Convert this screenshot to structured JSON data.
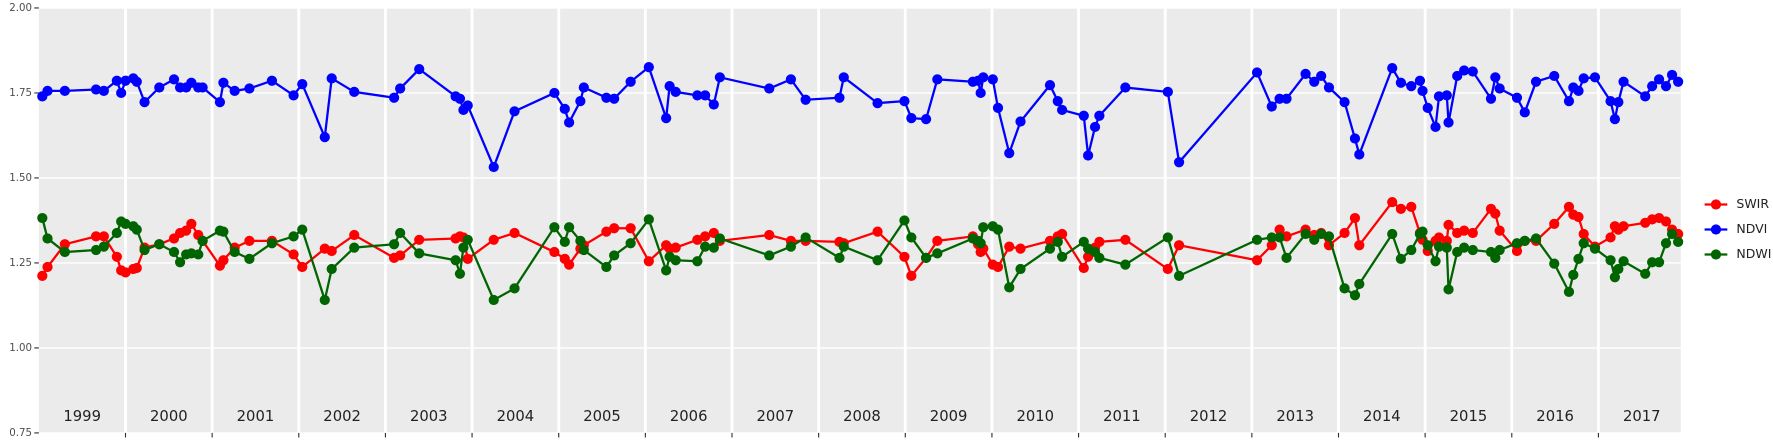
{
  "chart_data": {
    "type": "line",
    "x": [
      1999.04,
      1999.1,
      1999.3,
      1999.66,
      1999.75,
      1999.9,
      1999.95,
      2000.0,
      2000.09,
      2000.13,
      2000.22,
      2000.39,
      2000.56,
      2000.63,
      2000.7,
      2000.76,
      2000.84,
      2000.89,
      2001.09,
      2001.13,
      2001.26,
      2001.43,
      2001.69,
      2001.94,
      2002.04,
      2002.3,
      2002.38,
      2002.64,
      2003.1,
      2003.17,
      2003.39,
      2003.81,
      2003.86,
      2003.9,
      2003.95,
      2004.25,
      2004.49,
      2004.95,
      2005.07,
      2005.12,
      2005.25,
      2005.29,
      2005.55,
      2005.64,
      2005.83,
      2006.04,
      2006.24,
      2006.28,
      2006.35,
      2006.6,
      2006.69,
      2006.79,
      2006.86,
      2007.43,
      2007.68,
      2007.85,
      2008.24,
      2008.29,
      2008.68,
      2008.99,
      2009.07,
      2009.24,
      2009.37,
      2009.78,
      2009.84,
      2009.87,
      2009.9,
      2010.01,
      2010.07,
      2010.2,
      2010.33,
      2010.67,
      2010.76,
      2010.81,
      2011.06,
      2011.11,
      2011.19,
      2011.24,
      2011.54,
      2012.03,
      2012.16,
      2013.06,
      2013.23,
      2013.32,
      2013.4,
      2013.62,
      2013.72,
      2013.8,
      2013.89,
      2014.07,
      2014.19,
      2014.24,
      2014.62,
      2014.72,
      2014.84,
      2014.94,
      2014.97,
      2015.03,
      2015.12,
      2015.16,
      2015.25,
      2015.27,
      2015.37,
      2015.45,
      2015.55,
      2015.76,
      2015.81,
      2015.86,
      2016.06,
      2016.15,
      2016.28,
      2016.49,
      2016.66,
      2016.71,
      2016.77,
      2016.83,
      2016.96,
      2017.14,
      2017.19,
      2017.23,
      2017.29,
      2017.54,
      2017.62,
      2017.7,
      2017.78,
      2017.85,
      2017.92
    ],
    "series": [
      {
        "name": "SWIR",
        "color": "#ff0000",
        "values": [
          1.212,
          1.238,
          1.305,
          1.328,
          1.328,
          1.268,
          1.228,
          1.222,
          1.232,
          1.235,
          1.295,
          1.305,
          1.322,
          1.338,
          1.345,
          1.365,
          1.332,
          1.315,
          1.242,
          1.258,
          1.295,
          1.315,
          1.315,
          1.275,
          1.238,
          1.292,
          1.285,
          1.332,
          1.265,
          1.272,
          1.318,
          1.322,
          1.328,
          1.325,
          1.262,
          1.318,
          1.338,
          1.282,
          1.262,
          1.245,
          1.292,
          1.302,
          1.342,
          1.352,
          1.352,
          1.255,
          1.302,
          1.292,
          1.295,
          1.318,
          1.328,
          1.338,
          1.315,
          1.332,
          1.315,
          1.315,
          1.312,
          1.308,
          1.342,
          1.268,
          1.212,
          1.265,
          1.315,
          1.328,
          1.305,
          1.282,
          1.292,
          1.245,
          1.238,
          1.298,
          1.292,
          1.315,
          1.328,
          1.335,
          1.235,
          1.268,
          1.295,
          1.312,
          1.318,
          1.232,
          1.302,
          1.258,
          1.302,
          1.348,
          1.328,
          1.348,
          1.332,
          1.338,
          1.302,
          1.338,
          1.382,
          1.302,
          1.429,
          1.409,
          1.415,
          1.338,
          1.318,
          1.285,
          1.315,
          1.325,
          1.315,
          1.362,
          1.338,
          1.345,
          1.338,
          1.409,
          1.395,
          1.345,
          1.285,
          1.315,
          1.315,
          1.365,
          1.415,
          1.392,
          1.385,
          1.335,
          1.298,
          1.325,
          1.358,
          1.348,
          1.358,
          1.368,
          1.378,
          1.382,
          1.372,
          1.348,
          1.335
        ]
      },
      {
        "name": "NDVI",
        "color": "#0000ff",
        "values": [
          1.74,
          1.756,
          1.756,
          1.76,
          1.756,
          1.786,
          1.75,
          1.786,
          1.793,
          1.783,
          1.723,
          1.766,
          1.79,
          1.766,
          1.766,
          1.78,
          1.766,
          1.766,
          1.723,
          1.78,
          1.756,
          1.763,
          1.786,
          1.743,
          1.776,
          1.62,
          1.793,
          1.753,
          1.736,
          1.763,
          1.82,
          1.74,
          1.733,
          1.7,
          1.713,
          1.532,
          1.696,
          1.75,
          1.703,
          1.663,
          1.726,
          1.766,
          1.736,
          1.733,
          1.783,
          1.826,
          1.676,
          1.77,
          1.753,
          1.743,
          1.743,
          1.716,
          1.796,
          1.763,
          1.79,
          1.73,
          1.736,
          1.796,
          1.72,
          1.726,
          1.676,
          1.673,
          1.79,
          1.783,
          1.786,
          1.75,
          1.796,
          1.79,
          1.706,
          1.573,
          1.666,
          1.773,
          1.726,
          1.7,
          1.683,
          1.566,
          1.65,
          1.683,
          1.766,
          1.753,
          1.546,
          1.81,
          1.71,
          1.733,
          1.733,
          1.806,
          1.783,
          1.8,
          1.766,
          1.723,
          1.616,
          1.569,
          1.823,
          1.78,
          1.77,
          1.786,
          1.756,
          1.706,
          1.65,
          1.74,
          1.743,
          1.663,
          1.8,
          1.816,
          1.813,
          1.733,
          1.796,
          1.763,
          1.736,
          1.693,
          1.783,
          1.8,
          1.726,
          1.766,
          1.756,
          1.793,
          1.796,
          1.726,
          1.673,
          1.723,
          1.783,
          1.74,
          1.77,
          1.79,
          1.77,
          1.803,
          1.783
        ]
      },
      {
        "name": "NDWI",
        "color": "#006400",
        "values": [
          1.382,
          1.322,
          1.282,
          1.288,
          1.298,
          1.338,
          1.372,
          1.365,
          1.358,
          1.348,
          1.288,
          1.305,
          1.282,
          1.252,
          1.275,
          1.278,
          1.275,
          1.315,
          1.345,
          1.342,
          1.282,
          1.262,
          1.308,
          1.328,
          1.348,
          1.141,
          1.232,
          1.295,
          1.305,
          1.338,
          1.278,
          1.258,
          1.218,
          1.295,
          1.318,
          1.141,
          1.175,
          1.355,
          1.312,
          1.355,
          1.315,
          1.288,
          1.238,
          1.272,
          1.308,
          1.378,
          1.228,
          1.268,
          1.258,
          1.255,
          1.298,
          1.295,
          1.322,
          1.272,
          1.298,
          1.325,
          1.265,
          1.298,
          1.258,
          1.375,
          1.325,
          1.265,
          1.278,
          1.322,
          1.315,
          1.308,
          1.355,
          1.358,
          1.348,
          1.178,
          1.232,
          1.292,
          1.312,
          1.268,
          1.312,
          1.292,
          1.282,
          1.265,
          1.245,
          1.325,
          1.212,
          1.318,
          1.325,
          1.325,
          1.265,
          1.335,
          1.318,
          1.335,
          1.328,
          1.175,
          1.155,
          1.188,
          1.335,
          1.262,
          1.288,
          1.335,
          1.342,
          1.302,
          1.255,
          1.298,
          1.295,
          1.172,
          1.282,
          1.295,
          1.288,
          1.282,
          1.265,
          1.288,
          1.308,
          1.315,
          1.322,
          1.248,
          1.165,
          1.215,
          1.262,
          1.308,
          1.292,
          1.258,
          1.208,
          1.232,
          1.255,
          1.218,
          1.252,
          1.252,
          1.308,
          1.335,
          1.312
        ]
      }
    ],
    "xlim": [
      1999.0,
      2017.95
    ],
    "xticks": [
      2000,
      2001,
      2002,
      2003,
      2004,
      2005,
      2006,
      2007,
      2008,
      2009,
      2010,
      2011,
      2012,
      2013,
      2014,
      2015,
      2016,
      2017
    ],
    "year_labels": [
      "1999",
      "2000",
      "2001",
      "2002",
      "2003",
      "2004",
      "2005",
      "2006",
      "2007",
      "2008",
      "2009",
      "2010",
      "2011",
      "2012",
      "2013",
      "2014",
      "2015",
      "2016",
      "2017"
    ],
    "ylim": [
      0.75,
      2.0
    ],
    "yticks": [
      0.75,
      {
        "value": 1.0,
        "label": "1.00"
      },
      1.25,
      {
        "value": 1.5,
        "label": "1.50"
      },
      1.75,
      {
        "value": 2.0,
        "label": "2.00"
      }
    ],
    "grid": true,
    "legend": "right"
  }
}
